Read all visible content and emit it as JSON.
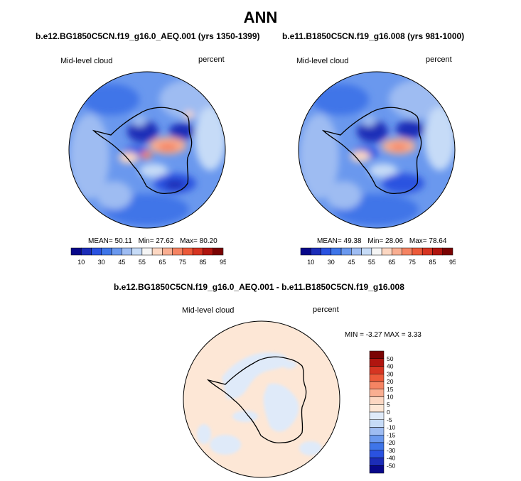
{
  "title": "ANN",
  "colors": {
    "land_outline": "#000000",
    "abs_scale": [
      "#08088a",
      "#1c2db8",
      "#2a52e0",
      "#3f75e8",
      "#6a98ee",
      "#9ebcf2",
      "#c6dbf7",
      "#f5f5f5",
      "#fcd7c2",
      "#f9ae91",
      "#f58463",
      "#ec5a3a",
      "#d63522",
      "#b0150f",
      "#7a0303"
    ],
    "diff_scale": [
      "#08088a",
      "#1c2db8",
      "#2a52e0",
      "#3f75e8",
      "#6a98ee",
      "#9ebcf2",
      "#c6dbf7",
      "#dfeaf9",
      "#fde7d6",
      "#fcd7c2",
      "#f9ae91",
      "#f58463",
      "#ec5a3a",
      "#d63522",
      "#b0150f",
      "#7a0303"
    ]
  },
  "chart_data": [
    {
      "type": "heatmap",
      "projection": "south polar stereographic",
      "title": "b.e12.BG1850C5CN.f19_g16.0_AEQ.001 (yrs 1350-1399)",
      "variable": "Mid-level cloud",
      "units": "percent",
      "stats": {
        "mean": "MEAN=  50.11",
        "min": "Min=  27.62",
        "max": "Max=  80.20"
      },
      "colorbar_ticks": [
        "10",
        "30",
        "45",
        "55",
        "65",
        "75",
        "85",
        "95"
      ],
      "mean": 50.11,
      "min": 27.62,
      "max": 80.2
    },
    {
      "type": "heatmap",
      "projection": "south polar stereographic",
      "title": "b.e11.B1850C5CN.f19_g16.008 (yrs 981-1000)",
      "variable": "Mid-level cloud",
      "units": "percent",
      "stats": {
        "mean": "MEAN=  49.38",
        "min": "Min=  28.06",
        "max": "Max=  78.64"
      },
      "colorbar_ticks": [
        "10",
        "30",
        "45",
        "55",
        "65",
        "75",
        "85",
        "95"
      ],
      "mean": 49.38,
      "min": 28.06,
      "max": 78.64
    },
    {
      "type": "heatmap",
      "projection": "south polar stereographic",
      "title": "b.e12.BG1850C5CN.f19_g16.0_AEQ.001 - b.e11.B1850C5CN.f19_g16.008",
      "variable": "Mid-level cloud",
      "units": "percent",
      "stats": {
        "minmax": "MIN =  -3.27 MAX =   3.33"
      },
      "colorbar_ticks": [
        "50",
        "40",
        "30",
        "20",
        "15",
        "10",
        "5",
        "0",
        "-5",
        "-10",
        "-15",
        "-20",
        "-30",
        "-40",
        "-50"
      ],
      "min": -3.27,
      "max": 3.33
    }
  ]
}
